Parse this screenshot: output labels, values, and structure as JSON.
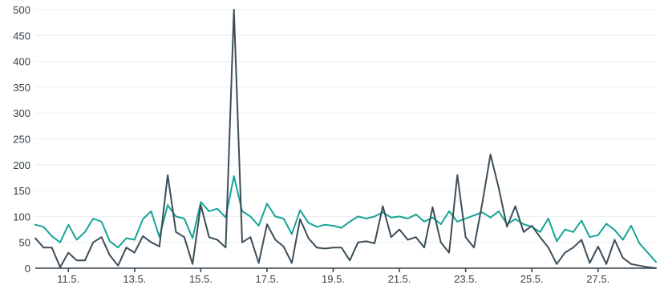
{
  "chart_data": {
    "type": "line",
    "title": "",
    "xlabel": "",
    "ylabel": "",
    "ylim": [
      0,
      500
    ],
    "xlim": [
      "2024-05-10",
      "2024-05-28 18:00"
    ],
    "grid": true,
    "legend": "none",
    "y_ticks": [
      "0",
      "50",
      "100",
      "150",
      "200",
      "250",
      "300",
      "350",
      "400",
      "450",
      "500"
    ],
    "x_ticks": [
      {
        "date": "2024-05-11",
        "label": "11.5."
      },
      {
        "date": "2024-05-13",
        "label": "13.5."
      },
      {
        "date": "2024-05-15",
        "label": "15.5."
      },
      {
        "date": "2024-05-17",
        "label": "17.5."
      },
      {
        "date": "2024-05-19",
        "label": "19.5."
      },
      {
        "date": "2024-05-21",
        "label": "21.5."
      },
      {
        "date": "2024-05-23",
        "label": "23.5."
      },
      {
        "date": "2024-05-25",
        "label": "25.5."
      },
      {
        "date": "2024-05-27",
        "label": "27.5."
      }
    ],
    "series": [
      {
        "color": "#16a497",
        "points": [
          [
            "2024-05-10 00:00",
            84
          ],
          [
            "2024-05-10 06:00",
            80
          ],
          [
            "2024-05-10 12:00",
            62
          ],
          [
            "2024-05-10 18:00",
            50
          ],
          [
            "2024-05-11 00:00",
            84
          ],
          [
            "2024-05-11 06:00",
            55
          ],
          [
            "2024-05-11 12:00",
            70
          ],
          [
            "2024-05-11 18:00",
            96
          ],
          [
            "2024-05-12 00:00",
            90
          ],
          [
            "2024-05-12 06:00",
            52
          ],
          [
            "2024-05-12 12:00",
            40
          ],
          [
            "2024-05-12 18:00",
            58
          ],
          [
            "2024-05-13 00:00",
            55
          ],
          [
            "2024-05-13 06:00",
            95
          ],
          [
            "2024-05-13 12:00",
            110
          ],
          [
            "2024-05-13 18:00",
            60
          ],
          [
            "2024-05-14 00:00",
            122
          ],
          [
            "2024-05-14 06:00",
            100
          ],
          [
            "2024-05-14 12:00",
            96
          ],
          [
            "2024-05-14 18:00",
            58
          ],
          [
            "2024-05-15 00:00",
            128
          ],
          [
            "2024-05-15 06:00",
            110
          ],
          [
            "2024-05-15 12:00",
            115
          ],
          [
            "2024-05-15 18:00",
            98
          ],
          [
            "2024-05-16 00:00",
            178
          ],
          [
            "2024-05-16 06:00",
            110
          ],
          [
            "2024-05-16 12:00",
            100
          ],
          [
            "2024-05-16 18:00",
            82
          ],
          [
            "2024-05-17 00:00",
            125
          ],
          [
            "2024-05-17 06:00",
            100
          ],
          [
            "2024-05-17 12:00",
            96
          ],
          [
            "2024-05-17 18:00",
            66
          ],
          [
            "2024-05-18 00:00",
            112
          ],
          [
            "2024-05-18 06:00",
            88
          ],
          [
            "2024-05-18 12:00",
            80
          ],
          [
            "2024-05-18 18:00",
            84
          ],
          [
            "2024-05-19 00:00",
            82
          ],
          [
            "2024-05-19 06:00",
            78
          ],
          [
            "2024-05-19 12:00",
            90
          ],
          [
            "2024-05-19 18:00",
            100
          ],
          [
            "2024-05-20 00:00",
            96
          ],
          [
            "2024-05-20 06:00",
            100
          ],
          [
            "2024-05-20 12:00",
            108
          ],
          [
            "2024-05-20 18:00",
            98
          ],
          [
            "2024-05-21 00:00",
            100
          ],
          [
            "2024-05-21 06:00",
            96
          ],
          [
            "2024-05-21 12:00",
            104
          ],
          [
            "2024-05-21 18:00",
            90
          ],
          [
            "2024-05-22 00:00",
            98
          ],
          [
            "2024-05-22 06:00",
            85
          ],
          [
            "2024-05-22 12:00",
            110
          ],
          [
            "2024-05-22 18:00",
            90
          ],
          [
            "2024-05-23 00:00",
            96
          ],
          [
            "2024-05-23 06:00",
            102
          ],
          [
            "2024-05-23 12:00",
            108
          ],
          [
            "2024-05-23 18:00",
            98
          ],
          [
            "2024-05-24 00:00",
            110
          ],
          [
            "2024-05-24 06:00",
            85
          ],
          [
            "2024-05-24 12:00",
            95
          ],
          [
            "2024-05-24 18:00",
            85
          ],
          [
            "2024-05-25 00:00",
            80
          ],
          [
            "2024-05-25 06:00",
            70
          ],
          [
            "2024-05-25 12:00",
            96
          ],
          [
            "2024-05-25 18:00",
            52
          ],
          [
            "2024-05-26 00:00",
            75
          ],
          [
            "2024-05-26 06:00",
            70
          ],
          [
            "2024-05-26 12:00",
            92
          ],
          [
            "2024-05-26 18:00",
            60
          ],
          [
            "2024-05-27 00:00",
            64
          ],
          [
            "2024-05-27 06:00",
            86
          ],
          [
            "2024-05-27 12:00",
            74
          ],
          [
            "2024-05-27 18:00",
            55
          ],
          [
            "2024-05-28 00:00",
            82
          ],
          [
            "2024-05-28 06:00",
            48
          ],
          [
            "2024-05-28 12:00",
            30
          ],
          [
            "2024-05-28 18:00",
            12
          ]
        ]
      },
      {
        "color": "#3c4e58",
        "points": [
          [
            "2024-05-10 00:00",
            58
          ],
          [
            "2024-05-10 06:00",
            40
          ],
          [
            "2024-05-10 12:00",
            40
          ],
          [
            "2024-05-10 18:00",
            2
          ],
          [
            "2024-05-11 00:00",
            30
          ],
          [
            "2024-05-11 06:00",
            15
          ],
          [
            "2024-05-11 12:00",
            15
          ],
          [
            "2024-05-11 18:00",
            50
          ],
          [
            "2024-05-12 00:00",
            60
          ],
          [
            "2024-05-12 06:00",
            25
          ],
          [
            "2024-05-12 12:00",
            5
          ],
          [
            "2024-05-12 18:00",
            40
          ],
          [
            "2024-05-13 00:00",
            30
          ],
          [
            "2024-05-13 06:00",
            62
          ],
          [
            "2024-05-13 12:00",
            50
          ],
          [
            "2024-05-13 18:00",
            42
          ],
          [
            "2024-05-14 00:00",
            180
          ],
          [
            "2024-05-14 06:00",
            70
          ],
          [
            "2024-05-14 12:00",
            60
          ],
          [
            "2024-05-14 18:00",
            8
          ],
          [
            "2024-05-15 00:00",
            122
          ],
          [
            "2024-05-15 06:00",
            60
          ],
          [
            "2024-05-15 12:00",
            55
          ],
          [
            "2024-05-15 18:00",
            40
          ],
          [
            "2024-05-16 00:00",
            500
          ],
          [
            "2024-05-16 06:00",
            50
          ],
          [
            "2024-05-16 12:00",
            60
          ],
          [
            "2024-05-16 18:00",
            10
          ],
          [
            "2024-05-17 00:00",
            85
          ],
          [
            "2024-05-17 06:00",
            55
          ],
          [
            "2024-05-17 12:00",
            42
          ],
          [
            "2024-05-17 18:00",
            10
          ],
          [
            "2024-05-18 00:00",
            95
          ],
          [
            "2024-05-18 06:00",
            58
          ],
          [
            "2024-05-18 12:00",
            40
          ],
          [
            "2024-05-18 18:00",
            38
          ],
          [
            "2024-05-19 00:00",
            40
          ],
          [
            "2024-05-19 06:00",
            40
          ],
          [
            "2024-05-19 12:00",
            15
          ],
          [
            "2024-05-19 18:00",
            50
          ],
          [
            "2024-05-20 00:00",
            52
          ],
          [
            "2024-05-20 06:00",
            48
          ],
          [
            "2024-05-20 12:00",
            120
          ],
          [
            "2024-05-20 18:00",
            60
          ],
          [
            "2024-05-21 00:00",
            75
          ],
          [
            "2024-05-21 06:00",
            55
          ],
          [
            "2024-05-21 12:00",
            60
          ],
          [
            "2024-05-21 18:00",
            40
          ],
          [
            "2024-05-22 00:00",
            118
          ],
          [
            "2024-05-22 06:00",
            50
          ],
          [
            "2024-05-22 12:00",
            30
          ],
          [
            "2024-05-22 18:00",
            180
          ],
          [
            "2024-05-23 00:00",
            60
          ],
          [
            "2024-05-23 06:00",
            40
          ],
          [
            "2024-05-23 12:00",
            125
          ],
          [
            "2024-05-23 18:00",
            220
          ],
          [
            "2024-05-24 00:00",
            155
          ],
          [
            "2024-05-24 06:00",
            80
          ],
          [
            "2024-05-24 12:00",
            120
          ],
          [
            "2024-05-24 18:00",
            70
          ],
          [
            "2024-05-25 00:00",
            82
          ],
          [
            "2024-05-25 06:00",
            60
          ],
          [
            "2024-05-25 12:00",
            40
          ],
          [
            "2024-05-25 18:00",
            8
          ],
          [
            "2024-05-26 00:00",
            30
          ],
          [
            "2024-05-26 06:00",
            40
          ],
          [
            "2024-05-26 12:00",
            55
          ],
          [
            "2024-05-26 18:00",
            10
          ],
          [
            "2024-05-27 00:00",
            42
          ],
          [
            "2024-05-27 06:00",
            8
          ],
          [
            "2024-05-27 12:00",
            55
          ],
          [
            "2024-05-27 18:00",
            20
          ],
          [
            "2024-05-28 00:00",
            8
          ],
          [
            "2024-05-28 06:00",
            5
          ],
          [
            "2024-05-28 12:00",
            2
          ],
          [
            "2024-05-28 18:00",
            0
          ]
        ]
      }
    ]
  }
}
